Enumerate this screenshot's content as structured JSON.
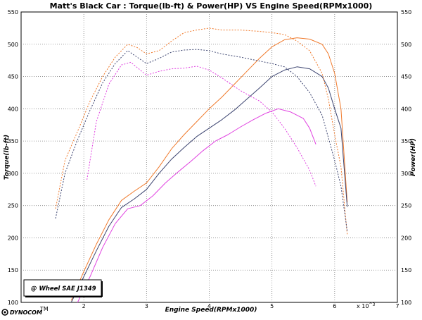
{
  "chart_data": {
    "type": "line",
    "title": "Matt's Black Car : Torque(lb-ft) & Power(HP) VS Engine Speed(RPMx1000)",
    "xlabel": "Engine Speed(RPMx1000)",
    "ylabel_left": "Torque(lb-ft)",
    "ylabel_right": "Power(HP)",
    "x_multiplier_label": "x 10^3",
    "xlim": [
      1.0,
      7.0
    ],
    "ylim": [
      100,
      550
    ],
    "x_ticks": [
      "2",
      "3",
      "4",
      "5",
      "6",
      "7"
    ],
    "x_tick_values": [
      2,
      3,
      4,
      5,
      6,
      7
    ],
    "y_ticks": [
      "100",
      "150",
      "200",
      "250",
      "300",
      "350",
      "400",
      "450",
      "500",
      "550"
    ],
    "y_tick_values": [
      100,
      150,
      200,
      250,
      300,
      350,
      400,
      450,
      500,
      550
    ],
    "grid": true,
    "annotation": "@ Wheel SAE J1349",
    "brand": "DYNOCOM",
    "series": [
      {
        "kind": "power",
        "color": "#f07a2c",
        "style": "solid",
        "x": [
          1.8,
          2.0,
          2.2,
          2.4,
          2.6,
          2.8,
          3.0,
          3.2,
          3.4,
          3.6,
          3.8,
          4.0,
          4.2,
          4.4,
          4.6,
          4.8,
          5.0,
          5.2,
          5.4,
          5.6,
          5.8,
          5.9,
          6.0,
          6.1,
          6.2
        ],
        "y": [
          103,
          148,
          190,
          228,
          258,
          272,
          285,
          310,
          338,
          360,
          380,
          400,
          418,
          438,
          458,
          478,
          496,
          507,
          510,
          508,
          500,
          485,
          455,
          400,
          255
        ]
      },
      {
        "kind": "power",
        "color": "#3c4470",
        "style": "solid",
        "x": [
          1.8,
          2.0,
          2.2,
          2.4,
          2.6,
          2.8,
          3.0,
          3.2,
          3.4,
          3.6,
          3.8,
          4.0,
          4.2,
          4.4,
          4.6,
          4.8,
          5.0,
          5.2,
          5.4,
          5.6,
          5.8,
          5.9,
          6.0,
          6.1,
          6.2
        ],
        "y": [
          100,
          140,
          180,
          218,
          247,
          260,
          275,
          300,
          322,
          340,
          357,
          370,
          383,
          398,
          415,
          432,
          450,
          460,
          465,
          462,
          450,
          432,
          400,
          370,
          248
        ]
      },
      {
        "kind": "power",
        "color": "#e040e0",
        "style": "solid",
        "x": [
          1.9,
          2.1,
          2.3,
          2.5,
          2.7,
          2.9,
          3.1,
          3.3,
          3.5,
          3.7,
          3.9,
          4.1,
          4.3,
          4.5,
          4.7,
          4.9,
          5.1,
          5.3,
          5.5,
          5.6,
          5.7
        ],
        "y": [
          100,
          140,
          185,
          222,
          245,
          250,
          265,
          285,
          302,
          318,
          335,
          350,
          360,
          372,
          383,
          393,
          400,
          395,
          385,
          370,
          345
        ]
      },
      {
        "kind": "torque",
        "color": "#f07a2c",
        "style": "dashed",
        "x": [
          1.55,
          1.7,
          1.9,
          2.1,
          2.3,
          2.5,
          2.7,
          2.85,
          3.0,
          3.2,
          3.4,
          3.6,
          3.8,
          4.0,
          4.2,
          4.5,
          4.8,
          5.0,
          5.2,
          5.4,
          5.6,
          5.8,
          5.9,
          6.0,
          6.1,
          6.2
        ],
        "y": [
          245,
          320,
          365,
          412,
          450,
          480,
          500,
          495,
          485,
          490,
          505,
          518,
          522,
          525,
          522,
          522,
          520,
          518,
          515,
          505,
          490,
          455,
          415,
          360,
          310,
          205
        ]
      },
      {
        "kind": "torque",
        "color": "#3c4470",
        "style": "dashed",
        "x": [
          1.55,
          1.7,
          1.9,
          2.1,
          2.3,
          2.5,
          2.7,
          2.85,
          3.0,
          3.2,
          3.4,
          3.6,
          3.8,
          4.0,
          4.2,
          4.5,
          4.8,
          5.0,
          5.2,
          5.4,
          5.6,
          5.8,
          5.9,
          6.0,
          6.1,
          6.2
        ],
        "y": [
          230,
          300,
          352,
          398,
          440,
          470,
          490,
          480,
          470,
          478,
          488,
          491,
          492,
          490,
          485,
          480,
          474,
          470,
          465,
          450,
          425,
          390,
          355,
          320,
          280,
          210
        ]
      },
      {
        "kind": "torque",
        "color": "#e040e0",
        "style": "dashed",
        "x": [
          2.05,
          2.2,
          2.4,
          2.6,
          2.75,
          2.9,
          3.0,
          3.2,
          3.4,
          3.6,
          3.8,
          4.0,
          4.2,
          4.5,
          4.8,
          5.0,
          5.2,
          5.4,
          5.6,
          5.7
        ],
        "y": [
          290,
          380,
          438,
          468,
          472,
          460,
          452,
          458,
          462,
          463,
          466,
          460,
          448,
          428,
          412,
          395,
          370,
          340,
          305,
          280
        ]
      }
    ]
  }
}
